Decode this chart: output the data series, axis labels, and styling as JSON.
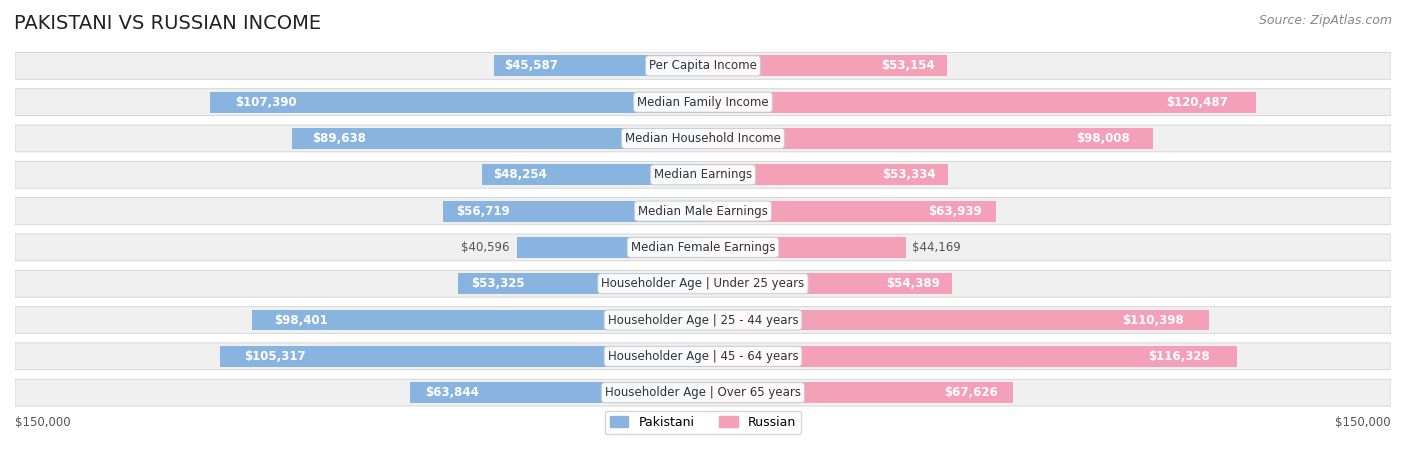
{
  "title": "PAKISTANI VS RUSSIAN INCOME",
  "source": "Source: ZipAtlas.com",
  "categories": [
    "Per Capita Income",
    "Median Family Income",
    "Median Household Income",
    "Median Earnings",
    "Median Male Earnings",
    "Median Female Earnings",
    "Householder Age | Under 25 years",
    "Householder Age | 25 - 44 years",
    "Householder Age | 45 - 64 years",
    "Householder Age | Over 65 years"
  ],
  "pakistani_values": [
    45587,
    107390,
    89638,
    48254,
    56719,
    40596,
    53325,
    98401,
    105317,
    63844
  ],
  "russian_values": [
    53154,
    120487,
    98008,
    53334,
    63939,
    44169,
    54389,
    110398,
    116328,
    67626
  ],
  "pakistani_labels": [
    "$45,587",
    "$107,390",
    "$89,638",
    "$48,254",
    "$56,719",
    "$40,596",
    "$53,325",
    "$98,401",
    "$105,317",
    "$63,844"
  ],
  "russian_labels": [
    "$53,154",
    "$120,487",
    "$98,008",
    "$53,334",
    "$63,939",
    "$44,169",
    "$54,389",
    "$110,398",
    "$116,328",
    "$67,626"
  ],
  "max_value": 150000,
  "pakistani_color": "#8ab4e0",
  "pakistani_color_dark": "#5b9bd5",
  "russian_color": "#f4a0b8",
  "russian_color_dark": "#f06090",
  "background_color": "#ffffff",
  "row_bg_color": "#f0f0f0",
  "label_box_color": "#ffffff",
  "title_fontsize": 14,
  "source_fontsize": 9,
  "bar_label_fontsize": 8.5,
  "category_fontsize": 8.5
}
